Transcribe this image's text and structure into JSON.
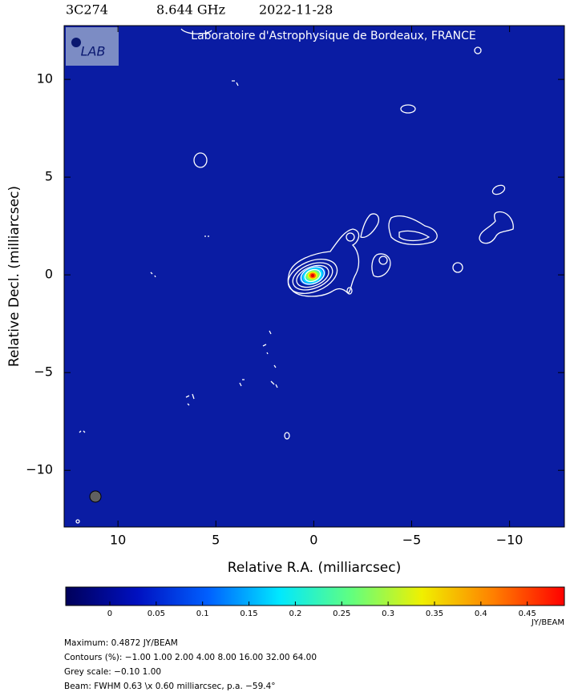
{
  "chart_data": {
    "type": "image",
    "header": [
      "3C274",
      "8.644 GHz",
      "2022-11-28"
    ],
    "credit": "Laboratoire d'Astrophysique de Bordeaux, FRANCE",
    "logo": "LAB",
    "xlabel": "Relative R.A. (milliarcsec)",
    "ylabel": "Relative Decl. (milliarcsec)",
    "xlim": [
      12.75,
      -12.8
    ],
    "ylim": [
      -12.9,
      12.75
    ],
    "xticks": [
      10,
      5,
      0,
      {
        "value": -5,
        "label": "−5"
      },
      {
        "value": -10,
        "label": "−10"
      }
    ],
    "yticks": [
      10,
      5,
      0,
      {
        "value": -5,
        "label": "−5"
      },
      {
        "value": -10,
        "label": "−10"
      }
    ],
    "background": "#0a1ca3",
    "colorbar": {
      "lim": [
        -0.0475,
        0.49
      ],
      "ticks": [
        0,
        0.05,
        0.1,
        0.15,
        0.2,
        0.25,
        0.3,
        0.35,
        0.4,
        0.45
      ],
      "unit": "JY/BEAM",
      "colors": [
        "#00005a",
        "#0010c0",
        "#0060ff",
        "#00e8ff",
        "#60ff80",
        "#f0f000",
        "#ff8000",
        "#ff0000"
      ]
    },
    "notes": [
      "Maximum: 0.4872 JY/BEAM",
      "Contours (%): −1.00 1.00 2.00 4.00 8.00 16.00 32.00 64.00",
      "Grey scale: −0.10 1.00",
      "Beam: FWHM 0.63 \\x 0.60 milliarcsec, p.a. −59.4°"
    ]
  }
}
